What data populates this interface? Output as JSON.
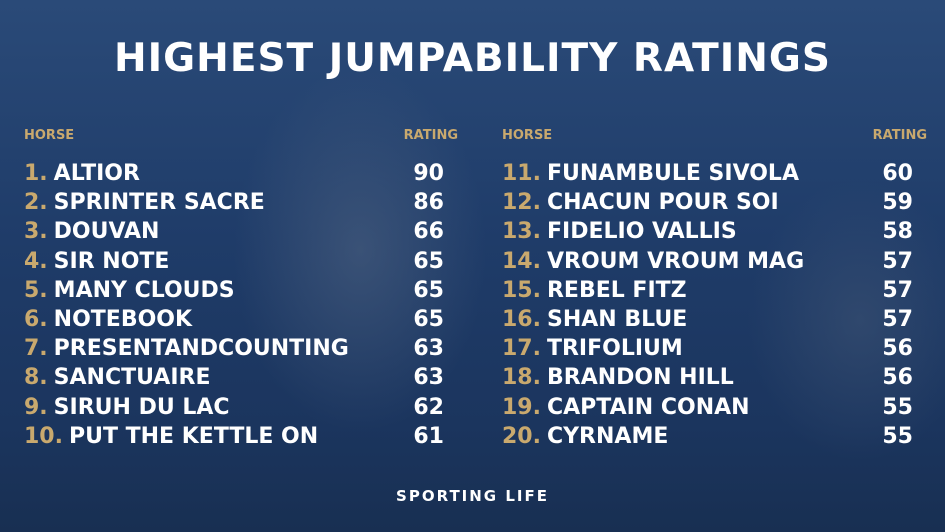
{
  "title": "HIGHEST JUMPABILITY RATINGS",
  "headers": {
    "horse": "HORSE",
    "rating": "RATING"
  },
  "colors": {
    "accent": "#c9a96e",
    "background": "#1f3c69",
    "text": "#ffffff"
  },
  "left": [
    {
      "rank": "1.",
      "horse": "ALTIOR",
      "rating": "90"
    },
    {
      "rank": "2.",
      "horse": "SPRINTER SACRE",
      "rating": "86"
    },
    {
      "rank": "3.",
      "horse": "DOUVAN",
      "rating": "66"
    },
    {
      "rank": "4.",
      "horse": "SIR NOTE",
      "rating": "65"
    },
    {
      "rank": "5.",
      "horse": "MANY CLOUDS",
      "rating": "65"
    },
    {
      "rank": "6.",
      "horse": "NOTEBOOK",
      "rating": "65"
    },
    {
      "rank": "7.",
      "horse": "PRESENTANDCOUNTING",
      "rating": "63"
    },
    {
      "rank": "8.",
      "horse": "SANCTUAIRE",
      "rating": "63"
    },
    {
      "rank": "9.",
      "horse": "SIRUH DU LAC",
      "rating": "62"
    },
    {
      "rank": "10.",
      "horse": "PUT THE KETTLE ON",
      "rating": "61"
    }
  ],
  "right": [
    {
      "rank": "11.",
      "horse": "FUNAMBULE SIVOLA",
      "rating": "60"
    },
    {
      "rank": "12.",
      "horse": "CHACUN POUR SOI",
      "rating": "59"
    },
    {
      "rank": "13.",
      "horse": "FIDELIO VALLIS",
      "rating": "58"
    },
    {
      "rank": "14.",
      "horse": "VROUM VROUM MAG",
      "rating": "57"
    },
    {
      "rank": "15.",
      "horse": "REBEL FITZ",
      "rating": "57"
    },
    {
      "rank": "16.",
      "horse": "SHAN BLUE",
      "rating": "57"
    },
    {
      "rank": "17.",
      "horse": "TRIFOLIUM",
      "rating": "56"
    },
    {
      "rank": "18.",
      "horse": "BRANDON HILL",
      "rating": "56"
    },
    {
      "rank": "19.",
      "horse": "CAPTAIN CONAN",
      "rating": "55"
    },
    {
      "rank": "20.",
      "horse": "CYRNAME",
      "rating": "55"
    }
  ],
  "footer": "SPORTING LIFE"
}
